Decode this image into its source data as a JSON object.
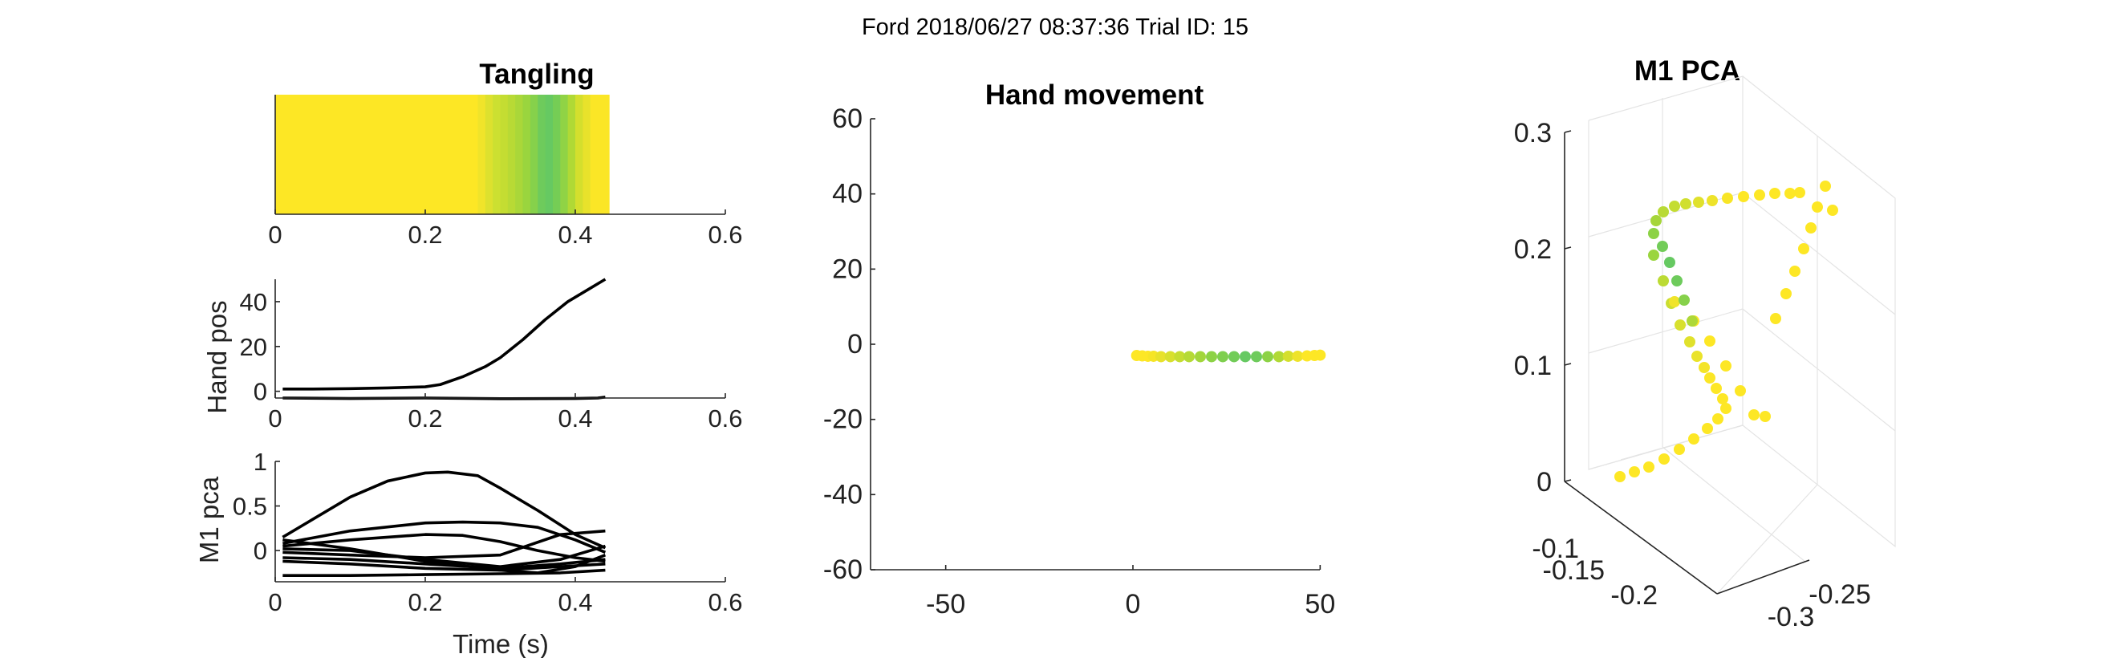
{
  "figure": {
    "suptitle": "Ford 2018/06/27 08:37:36 Trial ID: 15"
  },
  "chart_data": [
    {
      "id": "tangling",
      "type": "heatmap",
      "title": "Tangling",
      "xlim": [
        0,
        0.6
      ],
      "xticks": [
        "0",
        "0.2",
        "0.4",
        "0.6"
      ],
      "xticks_values": [
        0,
        0.2,
        0.4,
        0.6
      ],
      "data_range": [
        0,
        0.445
      ],
      "strip": [
        {
          "start": 0.0,
          "end": 0.27,
          "color": "#fde725"
        },
        {
          "start": 0.27,
          "end": 0.28,
          "color": "#f0e42a"
        },
        {
          "start": 0.28,
          "end": 0.29,
          "color": "#dde12e"
        },
        {
          "start": 0.29,
          "end": 0.3,
          "color": "#cce031"
        },
        {
          "start": 0.3,
          "end": 0.31,
          "color": "#c4dd32"
        },
        {
          "start": 0.31,
          "end": 0.32,
          "color": "#b8da35"
        },
        {
          "start": 0.32,
          "end": 0.33,
          "color": "#aad739"
        },
        {
          "start": 0.33,
          "end": 0.34,
          "color": "#9ad53e"
        },
        {
          "start": 0.34,
          "end": 0.35,
          "color": "#86d14b"
        },
        {
          "start": 0.35,
          "end": 0.36,
          "color": "#6ecb5c"
        },
        {
          "start": 0.36,
          "end": 0.37,
          "color": "#66c962"
        },
        {
          "start": 0.37,
          "end": 0.38,
          "color": "#75cd55"
        },
        {
          "start": 0.38,
          "end": 0.39,
          "color": "#90d345"
        },
        {
          "start": 0.39,
          "end": 0.4,
          "color": "#b0d935"
        },
        {
          "start": 0.4,
          "end": 0.41,
          "color": "#d4df2d"
        },
        {
          "start": 0.41,
          "end": 0.42,
          "color": "#e8e22b"
        },
        {
          "start": 0.42,
          "end": 0.445,
          "color": "#fbe626"
        }
      ]
    },
    {
      "id": "hand_pos",
      "type": "line",
      "title": "",
      "ylabel": "Hand pos",
      "xlim": [
        0,
        0.6
      ],
      "ylim": [
        -3,
        50
      ],
      "xticks": [
        "0",
        "0.2",
        "0.4",
        "0.6"
      ],
      "xticks_values": [
        0,
        0.2,
        0.4,
        0.6
      ],
      "yticks": [
        "0",
        "20",
        "40"
      ],
      "yticks_values": [
        0,
        20,
        40
      ],
      "series": [
        {
          "x": [
            0.01,
            0.05,
            0.1,
            0.15,
            0.2,
            0.22,
            0.25,
            0.28,
            0.3,
            0.33,
            0.36,
            0.39,
            0.42,
            0.44
          ],
          "y": [
            1,
            1,
            1.2,
            1.5,
            2,
            3,
            6.5,
            11,
            15,
            23,
            32,
            40,
            46,
            50
          ]
        },
        {
          "x": [
            0.01,
            0.1,
            0.2,
            0.3,
            0.4,
            0.43,
            0.44
          ],
          "y": [
            -3,
            -3.2,
            -3,
            -3.3,
            -3.2,
            -3,
            -2.6
          ]
        }
      ]
    },
    {
      "id": "m1_pca_traces",
      "type": "line",
      "title": "",
      "xlabel": "Time (s)",
      "ylabel": "M1 pca",
      "xlim": [
        0,
        0.6
      ],
      "ylim": [
        -0.35,
        1
      ],
      "xticks": [
        "0",
        "0.2",
        "0.4",
        "0.6"
      ],
      "xticks_values": [
        0,
        0.2,
        0.4,
        0.6
      ],
      "yticks": [
        "0",
        "0.5",
        "1"
      ],
      "yticks_values": [
        0,
        0.5,
        1
      ],
      "series": [
        {
          "x": [
            0.01,
            0.05,
            0.1,
            0.15,
            0.2,
            0.23,
            0.27,
            0.3,
            0.35,
            0.4,
            0.44
          ],
          "y": [
            0.15,
            0.35,
            0.6,
            0.78,
            0.87,
            0.88,
            0.84,
            0.7,
            0.45,
            0.18,
            0.03
          ]
        },
        {
          "x": [
            0.01,
            0.1,
            0.2,
            0.25,
            0.3,
            0.35,
            0.4,
            0.44
          ],
          "y": [
            0.08,
            0.22,
            0.31,
            0.32,
            0.31,
            0.26,
            0.12,
            -0.02
          ]
        },
        {
          "x": [
            0.01,
            0.1,
            0.2,
            0.25,
            0.3,
            0.35,
            0.4,
            0.44
          ],
          "y": [
            0.05,
            0.12,
            0.18,
            0.17,
            0.1,
            0.0,
            -0.08,
            -0.12
          ]
        },
        {
          "x": [
            0.01,
            0.1,
            0.2,
            0.3,
            0.38,
            0.44
          ],
          "y": [
            -0.02,
            -0.05,
            -0.08,
            -0.05,
            0.18,
            0.22
          ]
        },
        {
          "x": [
            0.01,
            0.1,
            0.2,
            0.3,
            0.38,
            0.44
          ],
          "y": [
            0.02,
            0.0,
            -0.1,
            -0.18,
            -0.1,
            0.05
          ]
        },
        {
          "x": [
            0.01,
            0.1,
            0.2,
            0.3,
            0.38,
            0.44
          ],
          "y": [
            -0.08,
            -0.1,
            -0.15,
            -0.2,
            -0.15,
            -0.1
          ]
        },
        {
          "x": [
            0.01,
            0.1,
            0.2,
            0.3,
            0.38,
            0.44
          ],
          "y": [
            -0.12,
            -0.15,
            -0.2,
            -0.22,
            -0.18,
            -0.15
          ]
        },
        {
          "x": [
            0.01,
            0.1,
            0.2,
            0.3,
            0.35,
            0.4,
            0.44
          ],
          "y": [
            0.12,
            0.02,
            -0.12,
            -0.22,
            -0.25,
            -0.18,
            -0.05
          ]
        },
        {
          "x": [
            0.01,
            0.1,
            0.2,
            0.3,
            0.38,
            0.44
          ],
          "y": [
            -0.28,
            -0.28,
            -0.27,
            -0.26,
            -0.25,
            -0.22
          ]
        }
      ]
    },
    {
      "id": "hand_movement",
      "type": "scatter",
      "title": "Hand movement",
      "xlim": [
        -60,
        60
      ],
      "ylim": [
        -60,
        60
      ],
      "xticks": [
        "-50",
        "0",
        "50"
      ],
      "xticks_values": [
        -50,
        0,
        50
      ],
      "yticks": [
        "60",
        "40",
        "20",
        "0",
        "-20",
        "-40",
        "-60"
      ],
      "yticks_values": [
        60,
        40,
        20,
        0,
        -20,
        -40,
        -60
      ],
      "points": [
        {
          "x": 1,
          "y": -3.0,
          "color": "#fde725"
        },
        {
          "x": 2.5,
          "y": -3.1,
          "color": "#fde725"
        },
        {
          "x": 4,
          "y": -3.2,
          "color": "#fde725"
        },
        {
          "x": 5.5,
          "y": -3.2,
          "color": "#f6e526"
        },
        {
          "x": 7.5,
          "y": -3.3,
          "color": "#e8e22b"
        },
        {
          "x": 10,
          "y": -3.3,
          "color": "#d8e02e"
        },
        {
          "x": 12.5,
          "y": -3.3,
          "color": "#c5dd32"
        },
        {
          "x": 15,
          "y": -3.3,
          "color": "#b5da36"
        },
        {
          "x": 18,
          "y": -3.3,
          "color": "#a2d63b"
        },
        {
          "x": 21,
          "y": -3.3,
          "color": "#8cd245"
        },
        {
          "x": 24,
          "y": -3.3,
          "color": "#7ecf4e"
        },
        {
          "x": 27,
          "y": -3.3,
          "color": "#72cc58"
        },
        {
          "x": 30,
          "y": -3.3,
          "color": "#66c962"
        },
        {
          "x": 33,
          "y": -3.3,
          "color": "#6ecb5c"
        },
        {
          "x": 36,
          "y": -3.3,
          "color": "#8cd245"
        },
        {
          "x": 39,
          "y": -3.3,
          "color": "#b0d935"
        },
        {
          "x": 41.5,
          "y": -3.2,
          "color": "#d4df2d"
        },
        {
          "x": 44,
          "y": -3.2,
          "color": "#eee32a"
        },
        {
          "x": 46.5,
          "y": -3.1,
          "color": "#fde725"
        },
        {
          "x": 48.5,
          "y": -3.0,
          "color": "#fde725"
        },
        {
          "x": 50,
          "y": -2.9,
          "color": "#fde725"
        }
      ]
    },
    {
      "id": "m1_pca_3d",
      "type": "scatter",
      "title": "M1 PCA",
      "view": "3d",
      "zlim": [
        0,
        0.3
      ],
      "xlim": [
        -0.3,
        -0.25
      ],
      "ylim": [
        -0.2,
        -0.1
      ],
      "zticks": [
        "0",
        "0.1",
        "0.2",
        "0.3"
      ],
      "zticks_values": [
        0,
        0.1,
        0.2,
        0.3
      ],
      "yticks": [
        "-0.1",
        "-0.15",
        "-0.2"
      ],
      "yticks_values": [
        -0.1,
        -0.15,
        -0.2
      ],
      "xticks": [
        "-0.3",
        "-0.25"
      ],
      "xticks_values": [
        -0.3,
        -0.25
      ],
      "projected_points": [
        {
          "u": 2019,
          "v": 594,
          "color": "#fde725"
        },
        {
          "u": 2037,
          "v": 588,
          "color": "#fde725"
        },
        {
          "u": 2055,
          "v": 582,
          "color": "#fde725"
        },
        {
          "u": 2074,
          "v": 572,
          "color": "#fde725"
        },
        {
          "u": 2093,
          "v": 560,
          "color": "#fde725"
        },
        {
          "u": 2111,
          "v": 547,
          "color": "#fde725"
        },
        {
          "u": 2128,
          "v": 534,
          "color": "#fde725"
        },
        {
          "u": 2141,
          "v": 522,
          "color": "#fde725"
        },
        {
          "u": 2151,
          "v": 509,
          "color": "#fde725"
        },
        {
          "u": 2147,
          "v": 497,
          "color": "#fde725"
        },
        {
          "u": 2139,
          "v": 484,
          "color": "#fde725"
        },
        {
          "u": 2131,
          "v": 471,
          "color": "#fbe626"
        },
        {
          "u": 2124,
          "v": 458,
          "color": "#f4e427"
        },
        {
          "u": 2115,
          "v": 444,
          "color": "#eae32a"
        },
        {
          "u": 2106,
          "v": 426,
          "color": "#e0e12c"
        },
        {
          "u": 2094,
          "v": 405,
          "color": "#d8e02e"
        },
        {
          "u": 2083,
          "v": 378,
          "color": "#cade31"
        },
        {
          "u": 2073,
          "v": 350,
          "color": "#bcdb34"
        },
        {
          "u": 2061,
          "v": 318,
          "color": "#9ad53e"
        },
        {
          "u": 2087,
          "v": 376,
          "color": "#f0e42a"
        },
        {
          "u": 2111,
          "v": 400,
          "color": "#fde725"
        },
        {
          "u": 2131,
          "v": 425,
          "color": "#fde725"
        },
        {
          "u": 2151,
          "v": 456,
          "color": "#fde725"
        },
        {
          "u": 2169,
          "v": 487,
          "color": "#fde725"
        },
        {
          "u": 2186,
          "v": 517,
          "color": "#fde725"
        },
        {
          "u": 2200,
          "v": 519,
          "color": "#fde725"
        },
        {
          "u": 2213,
          "v": 397,
          "color": "#fde725"
        },
        {
          "u": 2226,
          "v": 366,
          "color": "#fde725"
        },
        {
          "u": 2237,
          "v": 338,
          "color": "#fde725"
        },
        {
          "u": 2248,
          "v": 310,
          "color": "#fde725"
        },
        {
          "u": 2257,
          "v": 284,
          "color": "#fde725"
        },
        {
          "u": 2265,
          "v": 258,
          "color": "#fde725"
        },
        {
          "u": 2275,
          "v": 232,
          "color": "#fde725"
        },
        {
          "u": 2284,
          "v": 262,
          "color": "#fde725"
        },
        {
          "u": 2243,
          "v": 240,
          "color": "#fde725"
        },
        {
          "u": 2231,
          "v": 241,
          "color": "#fde725"
        },
        {
          "u": 2212,
          "v": 241,
          "color": "#fde725"
        },
        {
          "u": 2193,
          "v": 243,
          "color": "#fde725"
        },
        {
          "u": 2173,
          "v": 245,
          "color": "#fde725"
        },
        {
          "u": 2153,
          "v": 247,
          "color": "#f8e526"
        },
        {
          "u": 2134,
          "v": 250,
          "color": "#eee32a"
        },
        {
          "u": 2117,
          "v": 252,
          "color": "#e0e12c"
        },
        {
          "u": 2101,
          "v": 254,
          "color": "#d0df2f"
        },
        {
          "u": 2087,
          "v": 257,
          "color": "#c4dd32"
        },
        {
          "u": 2073,
          "v": 264,
          "color": "#b8da35"
        },
        {
          "u": 2064,
          "v": 275,
          "color": "#a6d63a"
        },
        {
          "u": 2061,
          "v": 291,
          "color": "#8cd245"
        },
        {
          "u": 2072,
          "v": 307,
          "color": "#72cc58"
        },
        {
          "u": 2081,
          "v": 327,
          "color": "#66c962"
        },
        {
          "u": 2090,
          "v": 350,
          "color": "#6ecb5c"
        },
        {
          "u": 2099,
          "v": 374,
          "color": "#86d14b"
        },
        {
          "u": 2109,
          "v": 400,
          "color": "#aed838"
        }
      ]
    }
  ]
}
